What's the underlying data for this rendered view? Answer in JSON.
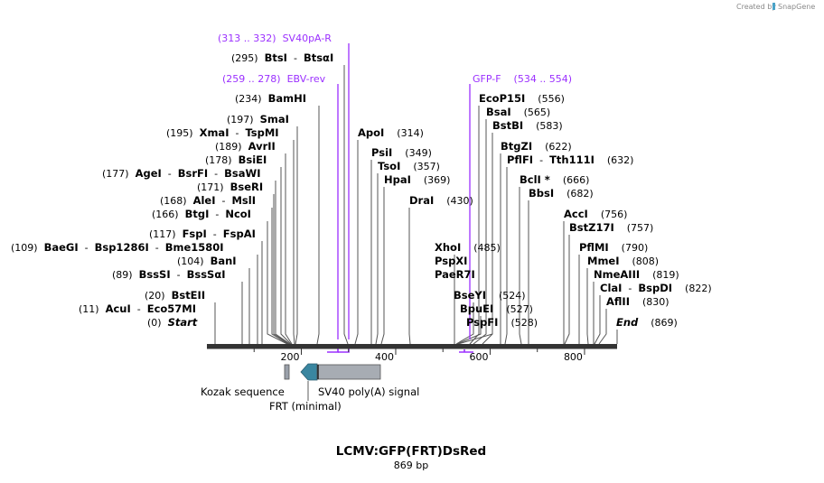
{
  "credit": {
    "text": "Created by",
    "brand": "SnapGene"
  },
  "map": {
    "title": "LCMV:GFP(FRT)DsRed",
    "length_label": "869 bp",
    "length": 869
  },
  "axis": {
    "ticks": [
      {
        "v": 200,
        "label": "200"
      },
      {
        "v": 400,
        "label": "400"
      },
      {
        "v": 600,
        "label": "600"
      },
      {
        "v": 800,
        "label": "800"
      }
    ]
  },
  "primers": [
    {
      "name": "SV40pA-R",
      "range": "(313 .. 332)",
      "start": 313,
      "end": 332,
      "direction": "reverse"
    },
    {
      "name": "EBV-rev",
      "range": "(259 .. 278)",
      "start": 259,
      "end": 278,
      "direction": "reverse"
    },
    {
      "name": "GFP-F",
      "range": "(534 .. 554)",
      "start": 534,
      "end": 554,
      "direction": "forward"
    }
  ],
  "features": [
    {
      "name": "Kozak sequence",
      "type": "misc",
      "start": 172,
      "end": 181
    },
    {
      "name": "FRT (minimal)",
      "type": "misc",
      "start": 198,
      "end": 231
    },
    {
      "name": "SV40 poly(A) signal",
      "type": "polyA",
      "start": 231,
      "end": 348
    }
  ],
  "labels": [
    {
      "id": "start",
      "pos": "(0)",
      "names": [
        "Start"
      ],
      "ital": true,
      "cut": 0
    },
    {
      "id": "acui",
      "pos": "(11)",
      "names": [
        "AcuI",
        "Eco57MI"
      ],
      "cut": 11
    },
    {
      "id": "bsteii",
      "pos": "(20)",
      "names": [
        "BstEII"
      ],
      "cut": 20
    },
    {
      "id": "bsssi",
      "pos": "(89)",
      "names": [
        "BssSI",
        "BssSαI"
      ],
      "cut": 89
    },
    {
      "id": "bani",
      "pos": "(104)",
      "names": [
        "BanI"
      ],
      "cut": 104
    },
    {
      "id": "baegi",
      "pos": "(109)",
      "names": [
        "BaeGI",
        "Bsp1286I",
        "Bme1580I"
      ],
      "cut": 109
    },
    {
      "id": "fspi",
      "pos": "(117)",
      "names": [
        "FspI",
        "FspAI"
      ],
      "cut": 117
    },
    {
      "id": "btgi",
      "pos": "(166)",
      "names": [
        "BtgI",
        "NcoI"
      ],
      "cut": 166
    },
    {
      "id": "alei",
      "pos": "(168)",
      "names": [
        "AleI",
        "MslI"
      ],
      "cut": 168
    },
    {
      "id": "bseri",
      "pos": "(171)",
      "names": [
        "BseRI"
      ],
      "cut": 171
    },
    {
      "id": "agei",
      "pos": "(177)",
      "names": [
        "AgeI",
        "BsrFI",
        "BsaWI"
      ],
      "cut": 177
    },
    {
      "id": "bsiei",
      "pos": "(178)",
      "names": [
        "BsiEI"
      ],
      "cut": 178
    },
    {
      "id": "avrii",
      "pos": "(189)",
      "names": [
        "AvrII"
      ],
      "cut": 189
    },
    {
      "id": "xmai",
      "pos": "(195)",
      "names": [
        "XmaI",
        "TspMI"
      ],
      "cut": 195
    },
    {
      "id": "smai",
      "pos": "(197)",
      "names": [
        "SmaI"
      ],
      "cut": 197
    },
    {
      "id": "bamhi",
      "pos": "(234)",
      "names": [
        "BamHI"
      ],
      "cut": 234
    },
    {
      "id": "btsi",
      "pos": "(295)",
      "names": [
        "BtsI",
        "BtsαI"
      ],
      "cut": 295
    },
    {
      "id": "apoi",
      "pos": "(314)",
      "names": [
        "ApoI"
      ],
      "cut": 314
    },
    {
      "id": "psii",
      "pos": "(349)",
      "names": [
        "PsiI"
      ],
      "cut": 349
    },
    {
      "id": "tsoi",
      "pos": "(357)",
      "names": [
        "TsoI"
      ],
      "cut": 357
    },
    {
      "id": "hpai",
      "pos": "(369)",
      "names": [
        "HpaI"
      ],
      "cut": 369
    },
    {
      "id": "drai",
      "pos": "(430)",
      "names": [
        "DraI"
      ],
      "cut": 430
    },
    {
      "id": "xhoi",
      "pos": "(485)",
      "names": [
        "XhoI"
      ],
      "cut": 485
    },
    {
      "id": "pspxi",
      "pos": "",
      "names": [
        "PspXI"
      ],
      "cut": 485
    },
    {
      "id": "paer7i",
      "pos": "",
      "names": [
        "PaeR7I"
      ],
      "cut": 485
    },
    {
      "id": "bseyi",
      "pos": "(524)",
      "names": [
        "BseYI"
      ],
      "cut": 524
    },
    {
      "id": "bpuei",
      "pos": "(527)",
      "names": [
        "BpuEI"
      ],
      "cut": 527
    },
    {
      "id": "pspfi",
      "pos": "(528)",
      "names": [
        "PspFI"
      ],
      "cut": 528
    },
    {
      "id": "ecop15i",
      "pos": "(556)",
      "names": [
        "EcoP15I"
      ],
      "cut": 556
    },
    {
      "id": "bsai",
      "pos": "(565)",
      "names": [
        "BsaI"
      ],
      "cut": 565
    },
    {
      "id": "bstbi",
      "pos": "(583)",
      "names": [
        "BstBI"
      ],
      "cut": 583
    },
    {
      "id": "btgzi",
      "pos": "(622)",
      "names": [
        "BtgZI"
      ],
      "cut": 622
    },
    {
      "id": "pflfi",
      "pos": "(632)",
      "names": [
        "PflFI",
        "Tth111I"
      ],
      "cut": 632
    },
    {
      "id": "bcli",
      "pos": "(666)",
      "names": [
        "BclI *"
      ],
      "cut": 666
    },
    {
      "id": "bbsi",
      "pos": "(682)",
      "names": [
        "BbsI"
      ],
      "cut": 682
    },
    {
      "id": "acci",
      "pos": "(756)",
      "names": [
        "AccI"
      ],
      "cut": 756
    },
    {
      "id": "bstz17i",
      "pos": "(757)",
      "names": [
        "BstZ17I"
      ],
      "cut": 757
    },
    {
      "id": "pflmi",
      "pos": "(790)",
      "names": [
        "PflMI"
      ],
      "cut": 790
    },
    {
      "id": "mmei",
      "pos": "(808)",
      "names": [
        "MmeI"
      ],
      "cut": 808
    },
    {
      "id": "nmeaiii",
      "pos": "(819)",
      "names": [
        "NmeAIII"
      ],
      "cut": 819
    },
    {
      "id": "clai",
      "pos": "(822)",
      "names": [
        "ClaI",
        "BspDI"
      ],
      "cut": 822
    },
    {
      "id": "aflii",
      "pos": "(830)",
      "names": [
        "AflII"
      ],
      "cut": 830
    },
    {
      "id": "end",
      "pos": "(869)",
      "names": [
        "End"
      ],
      "ital": true,
      "cut": 869
    }
  ]
}
